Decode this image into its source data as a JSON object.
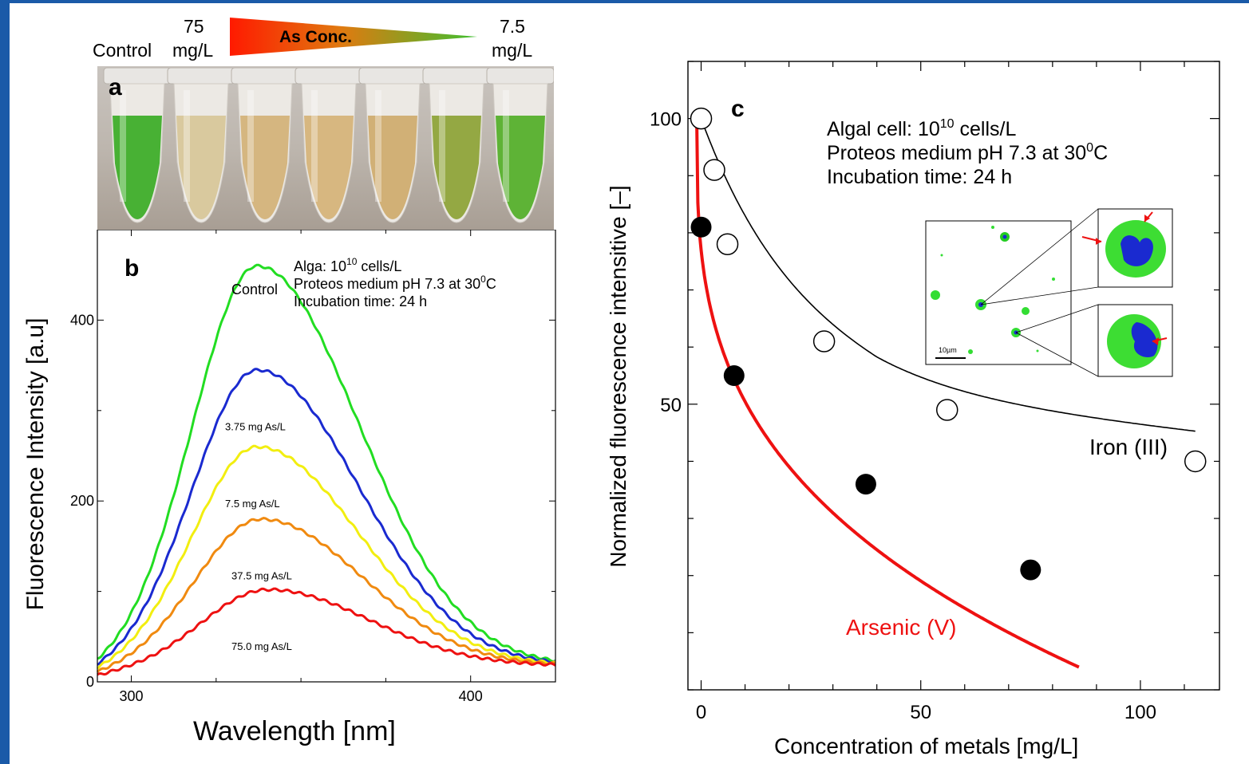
{
  "colors": {
    "frame": "#1a5aa8",
    "red_curve": "#ee1111"
  },
  "panel_a": {
    "letter": "a",
    "label_control": "Control",
    "label_high_num": "75",
    "label_high_unit": "mg/L",
    "label_low_num": "7.5",
    "label_low_unit": "mg/L",
    "gradient_text": "As Conc.",
    "gradient_colors": [
      "#ff1a00",
      "#3fbf30"
    ],
    "tubes": [
      {
        "color": "#3fae2a"
      },
      {
        "color": "#d8c79a"
      },
      {
        "color": "#d4b37a"
      },
      {
        "color": "#d6b47a"
      },
      {
        "color": "#d0ad70"
      },
      {
        "color": "#8fa43a"
      },
      {
        "color": "#56b02c"
      }
    ]
  },
  "chart_data": [
    {
      "type": "line",
      "panel_letter": "b",
      "xlabel": "Wavelength [nm]",
      "ylabel": "Fluorescence Intensity [a.u]",
      "xlim": [
        290,
        425
      ],
      "ylim": [
        0,
        500
      ],
      "xticks": [
        300,
        400
      ],
      "yticks": [
        0,
        200,
        400
      ],
      "annotation": [
        "Alga: 10",
        "10",
        " cells/L",
        "Proteos medium pH 7.3 at 30",
        "0",
        "C",
        "Incubation time: 24 h"
      ],
      "series": [
        {
          "name": "Control",
          "color": "#22dd22",
          "peak": 455,
          "peak_x": 337
        },
        {
          "name": "3.75 mg As/L",
          "color": "#1a2ad0",
          "peak": 340,
          "peak_x": 337
        },
        {
          "name": "7.5 mg As/L",
          "color": "#f2ee10",
          "peak": 255,
          "peak_x": 337
        },
        {
          "name": "37.5 mg As/L",
          "color": "#f08a10",
          "peak": 175,
          "peak_x": 338
        },
        {
          "name": "75.0 mg As/L",
          "color": "#ee1111",
          "peak": 97,
          "peak_x": 340
        }
      ]
    },
    {
      "type": "scatter",
      "panel_letter": "c",
      "xlabel": "Concentration of metals [mg/L]",
      "ylabel": "Normalized fluorescence intensitive [–]",
      "xlim": [
        -3,
        118
      ],
      "ylim": [
        0,
        110
      ],
      "xticks": [
        0,
        50,
        100
      ],
      "yticks": [
        50,
        100
      ],
      "annotation": [
        "Algal cell: 10",
        "10",
        " cells/L",
        "Proteos medium pH 7.3 at 30",
        "0",
        "C",
        "Incubation time: 24 h"
      ],
      "series": [
        {
          "name": "Iron (III)",
          "marker": "open",
          "x": [
            0,
            3,
            6,
            28,
            56,
            112.5
          ],
          "y": [
            100,
            91,
            78,
            61,
            49,
            40
          ]
        },
        {
          "name": "Arsenic (V)",
          "marker": "filled",
          "x": [
            0,
            7.5,
            37.5,
            75
          ],
          "y": [
            81,
            55,
            36,
            21
          ]
        }
      ],
      "inset_scale": "10µm"
    }
  ]
}
